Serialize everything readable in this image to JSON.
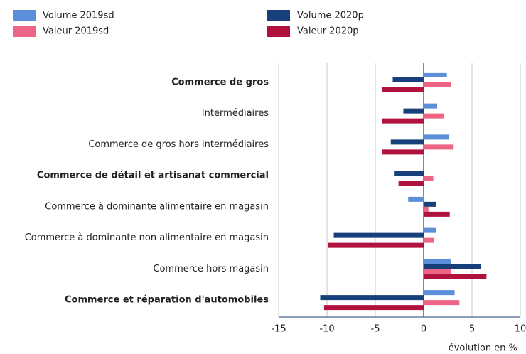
{
  "chart_data": {
    "type": "hbar",
    "x_label": "évolution en %",
    "categories": [
      "Commerce de gros",
      "Intermédiaires",
      "Commerce de gros hors intermédiaires",
      "Commerce de détail et artisanat commercial",
      "Commerce à dominante alimentaire en magasin",
      "Commerce à dominante non alimentaire en magasin",
      "Commerce hors magasin",
      "Commerce et réparation d'automobiles"
    ],
    "bold": [
      true,
      false,
      false,
      true,
      false,
      false,
      false,
      true
    ],
    "series": [
      {
        "name": "Volume 2019sd",
        "color": "#5b8fd9",
        "values": [
          2.4,
          1.4,
          2.6,
          0,
          -1.6,
          1.3,
          2.8,
          3.2
        ]
      },
      {
        "name": "Volume 2020p",
        "color": "#173f7a",
        "values": [
          -3.2,
          -2.1,
          -3.4,
          -3.0,
          1.3,
          -9.3,
          5.9,
          -10.7
        ]
      },
      {
        "name": "Valeur 2019sd",
        "color": "#ef6585",
        "values": [
          2.8,
          2.1,
          3.1,
          1.0,
          0.5,
          1.1,
          2.8,
          3.7
        ]
      },
      {
        "name": "Valeur 2020p",
        "color": "#b0123d",
        "values": [
          -4.3,
          -4.3,
          -4.3,
          -2.6,
          2.7,
          -9.9,
          6.5,
          -10.3
        ]
      }
    ],
    "xlim": [
      -15,
      10
    ],
    "xticks": [
      -15,
      -10,
      -5,
      0,
      5,
      10
    ],
    "grid": true
  }
}
